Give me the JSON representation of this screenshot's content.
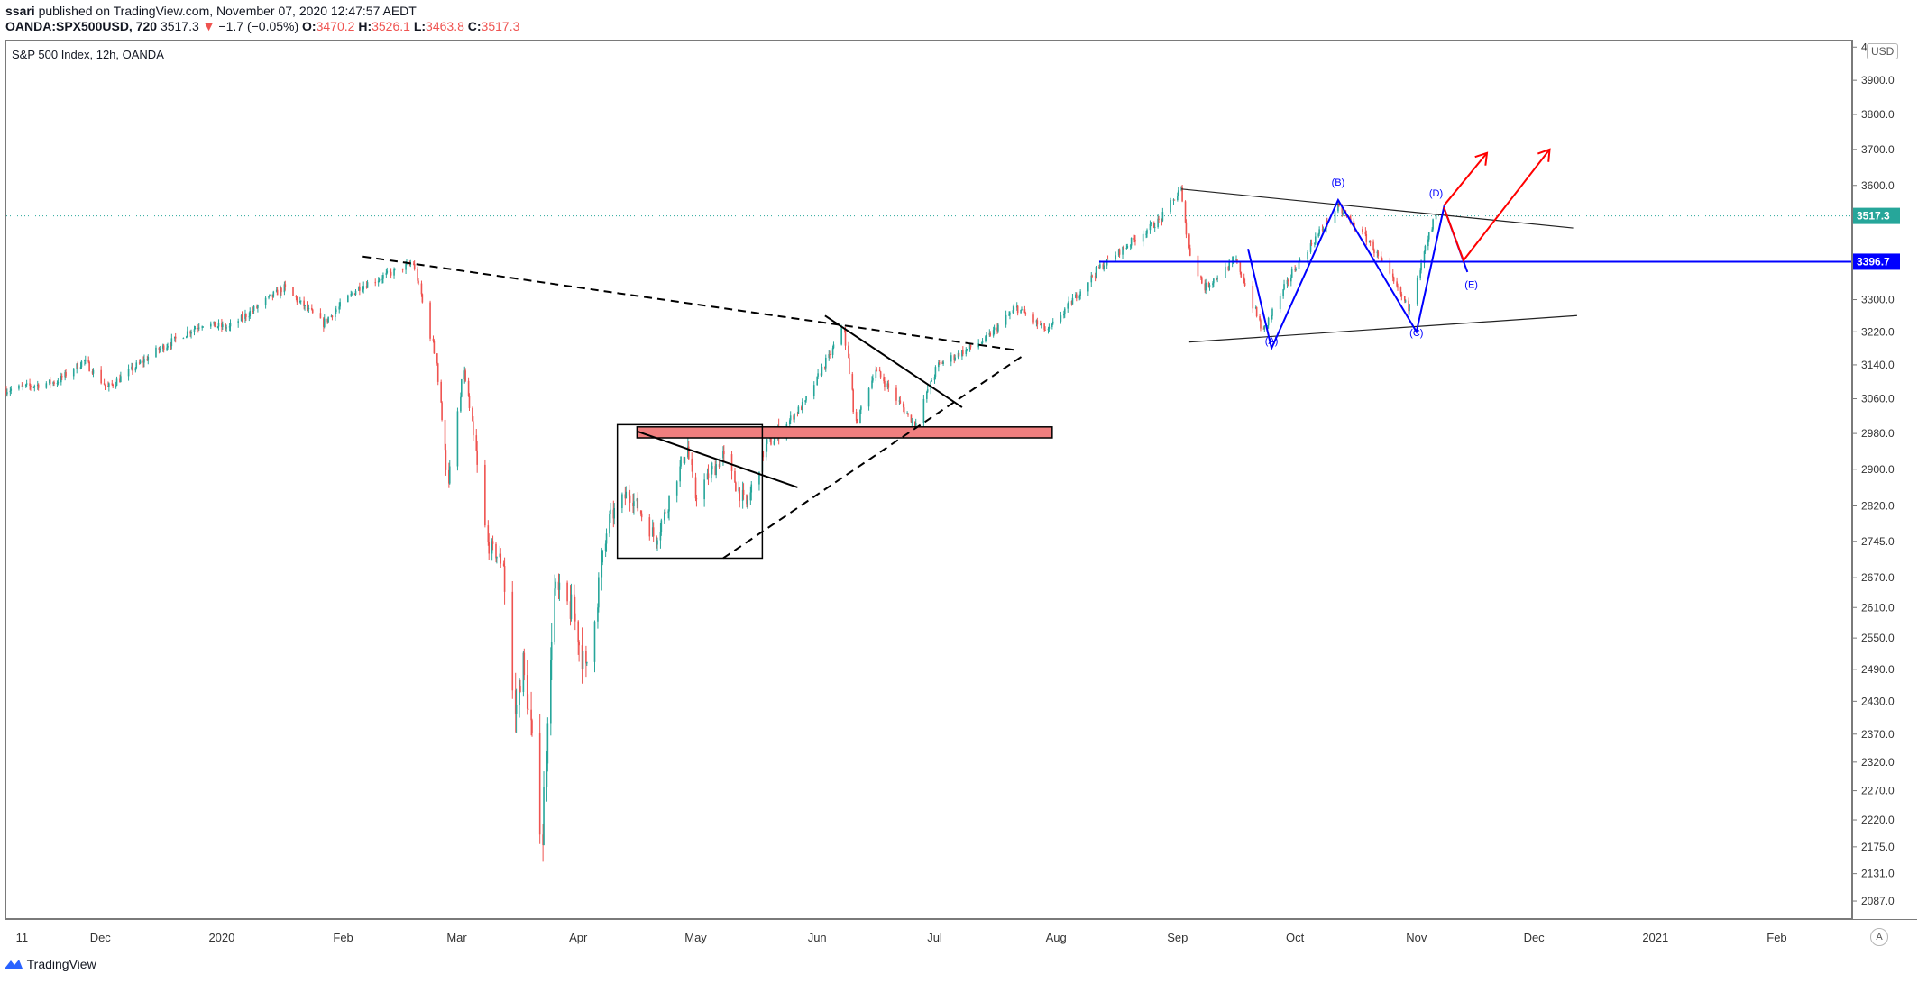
{
  "header": {
    "author": "ssari",
    "published_text": " published on TradingView.com, November 07, 2020 12:47:57 AEDT",
    "symbol": "OANDA:SPX500USD, 720",
    "last": "3517.3",
    "change": "−1.7 (−0.05%)",
    "o_label": "O:",
    "o": "3470.2",
    "h_label": "H:",
    "h": "3526.1",
    "l_label": "L:",
    "l": "3463.8",
    "c_label": "C:",
    "c": "3517.3"
  },
  "pane_title": "S&P 500 Index, 12h, OANDA",
  "currency_button": "USD",
  "auto_button": "A",
  "footer": {
    "brand": "TradingView"
  },
  "colors": {
    "up": "#26a69a",
    "down": "#ef5350",
    "blue": "#0000ff",
    "red": "#ff0000",
    "zone_fill": "#f07f7f",
    "price_badge": "#26a69a"
  },
  "icons": [
    "tradingview-logo-icon",
    "down-triangle-icon"
  ],
  "chart_data": {
    "type": "candlestick",
    "title": "S&P 500 Index, 12h, OANDA",
    "y_axis": {
      "ticks": [
        4000,
        3900,
        3800,
        3700,
        3600,
        3300,
        3220,
        3140,
        3060,
        2980,
        2900,
        2820,
        2745,
        2670,
        2610,
        2550,
        2490,
        2430,
        2370,
        2320,
        2270,
        2220,
        2175,
        2131,
        2087
      ],
      "tick_labels": [
        "4000.0",
        "3900.0",
        "3800.0",
        "3700.0",
        "3600.0",
        "3300.0",
        "3220.0",
        "3140.0",
        "3060.0",
        "2980.0",
        "2900.0",
        "2820.0",
        "2745.0",
        "2670.0",
        "2610.0",
        "2550.0",
        "2490.0",
        "2430.0",
        "2370.0",
        "2320.0",
        "2270.0",
        "2220.0",
        "2175.0",
        "2131.0",
        "2087.0"
      ],
      "scale": "log",
      "range": [
        2060,
        4020
      ]
    },
    "x_axis": {
      "range": [
        "2019-11-07",
        "2021-02-20"
      ],
      "ticks": [
        {
          "date": "2019-11-11",
          "label": "11"
        },
        {
          "date": "2019-12-01",
          "label": "Dec"
        },
        {
          "date": "2020-01-01",
          "label": "2020"
        },
        {
          "date": "2020-02-01",
          "label": "Feb"
        },
        {
          "date": "2020-03-01",
          "label": "Mar"
        },
        {
          "date": "2020-04-01",
          "label": "Apr"
        },
        {
          "date": "2020-05-01",
          "label": "May"
        },
        {
          "date": "2020-06-01",
          "label": "Jun"
        },
        {
          "date": "2020-07-01",
          "label": "Jul"
        },
        {
          "date": "2020-08-01",
          "label": "Aug"
        },
        {
          "date": "2020-09-01",
          "label": "Sep"
        },
        {
          "date": "2020-10-01",
          "label": "Oct"
        },
        {
          "date": "2020-11-01",
          "label": "Nov"
        },
        {
          "date": "2020-12-01",
          "label": "Dec"
        },
        {
          "date": "2021-01-01",
          "label": "2021"
        },
        {
          "date": "2021-02-01",
          "label": "Feb"
        }
      ]
    },
    "price_path": [
      [
        "2019-11-07",
        3080
      ],
      [
        "2019-11-20",
        3100
      ],
      [
        "2019-11-27",
        3150
      ],
      [
        "2019-12-03",
        3085
      ],
      [
        "2019-12-15",
        3170
      ],
      [
        "2019-12-27",
        3240
      ],
      [
        "2020-01-03",
        3230
      ],
      [
        "2020-01-17",
        3330
      ],
      [
        "2020-01-27",
        3240
      ],
      [
        "2020-02-05",
        3330
      ],
      [
        "2020-02-19",
        3393
      ],
      [
        "2020-02-25",
        3150
      ],
      [
        "2020-02-28",
        2860
      ],
      [
        "2020-03-03",
        3130
      ],
      [
        "2020-03-09",
        2740
      ],
      [
        "2020-03-13",
        2700
      ],
      [
        "2020-03-16",
        2400
      ],
      [
        "2020-03-18",
        2500
      ],
      [
        "2020-03-23",
        2190
      ],
      [
        "2020-03-26",
        2640
      ],
      [
        "2020-03-31",
        2600
      ],
      [
        "2020-04-03",
        2480
      ],
      [
        "2020-04-09",
        2790
      ],
      [
        "2020-04-14",
        2850
      ],
      [
        "2020-04-21",
        2750
      ],
      [
        "2020-04-29",
        2950
      ],
      [
        "2020-05-01",
        2840
      ],
      [
        "2020-05-08",
        2930
      ],
      [
        "2020-05-14",
        2820
      ],
      [
        "2020-05-19",
        2950
      ],
      [
        "2020-05-29",
        3050
      ],
      [
        "2020-06-08",
        3230
      ],
      [
        "2020-06-11",
        3000
      ],
      [
        "2020-06-16",
        3130
      ],
      [
        "2020-06-26",
        3000
      ],
      [
        "2020-07-02",
        3140
      ],
      [
        "2020-07-14",
        3200
      ],
      [
        "2020-07-22",
        3280
      ],
      [
        "2020-07-30",
        3220
      ],
      [
        "2020-08-12",
        3380
      ],
      [
        "2020-08-28",
        3510
      ],
      [
        "2020-09-02",
        3590
      ],
      [
        "2020-09-04",
        3430
      ],
      [
        "2020-09-08",
        3330
      ],
      [
        "2020-09-16",
        3400
      ],
      [
        "2020-09-23",
        3220
      ],
      [
        "2020-10-01",
        3380
      ],
      [
        "2020-10-12",
        3540
      ],
      [
        "2020-10-20",
        3450
      ],
      [
        "2020-10-30",
        3280
      ],
      [
        "2020-11-04",
        3450
      ],
      [
        "2020-11-06",
        3517
      ]
    ],
    "horizontal_lines": [
      {
        "price": 3396.7,
        "label": "3396.7",
        "color": "#0000ff"
      },
      {
        "price": 3517.3,
        "label": "3517.3",
        "color": "#26a69a",
        "style": "dotted"
      }
    ],
    "wave_labels": [
      {
        "label": "(A)",
        "date": "2020-09-25",
        "price": 3190
      },
      {
        "label": "(B)",
        "date": "2020-10-12",
        "price": 3600
      },
      {
        "label": "(C)",
        "date": "2020-11-01",
        "price": 3210
      },
      {
        "label": "(D)",
        "date": "2020-11-06",
        "price": 3570
      },
      {
        "label": "(E)",
        "date": "2020-11-15",
        "price": 3330
      }
    ],
    "annotations": {
      "blue_zigzag": [
        [
          "2020-09-19",
          3430
        ],
        [
          "2020-09-25",
          3180
        ],
        [
          "2020-10-12",
          3560
        ],
        [
          "2020-11-01",
          3220
        ],
        [
          "2020-11-08",
          3540
        ],
        [
          "2020-11-14",
          3370
        ]
      ],
      "red_projection": [
        [
          "2020-11-08",
          3540
        ],
        [
          "2020-11-13",
          3400
        ],
        [
          "2020-12-05",
          3700
        ]
      ],
      "red_arrow_short": [
        [
          "2020-11-08",
          3545
        ],
        [
          "2020-11-19",
          3690
        ]
      ],
      "triangle_upper": [
        [
          "2020-09-02",
          3590
        ],
        [
          "2020-12-11",
          3485
        ]
      ],
      "triangle_lower": [
        [
          "2020-09-04",
          3195
        ],
        [
          "2020-12-12",
          3260
        ]
      ],
      "dashed_resistance": [
        [
          "2020-02-06",
          3410
        ],
        [
          "2020-07-22",
          3175
        ]
      ],
      "dashed_support": [
        [
          "2020-05-08",
          2710
        ],
        [
          "2020-07-24",
          3165
        ]
      ],
      "black_line_june": [
        [
          "2020-06-03",
          3260
        ],
        [
          "2020-07-08",
          3040
        ]
      ],
      "black_line_apr": [
        [
          "2020-04-16",
          2985
        ],
        [
          "2020-05-27",
          2860
        ]
      ],
      "red_zone": {
        "from": "2020-04-16",
        "to": "2020-07-31",
        "low": 2970,
        "high": 2995
      },
      "box": {
        "from": "2020-04-11",
        "to": "2020-05-18",
        "low": 2710,
        "high": 3000
      }
    }
  }
}
